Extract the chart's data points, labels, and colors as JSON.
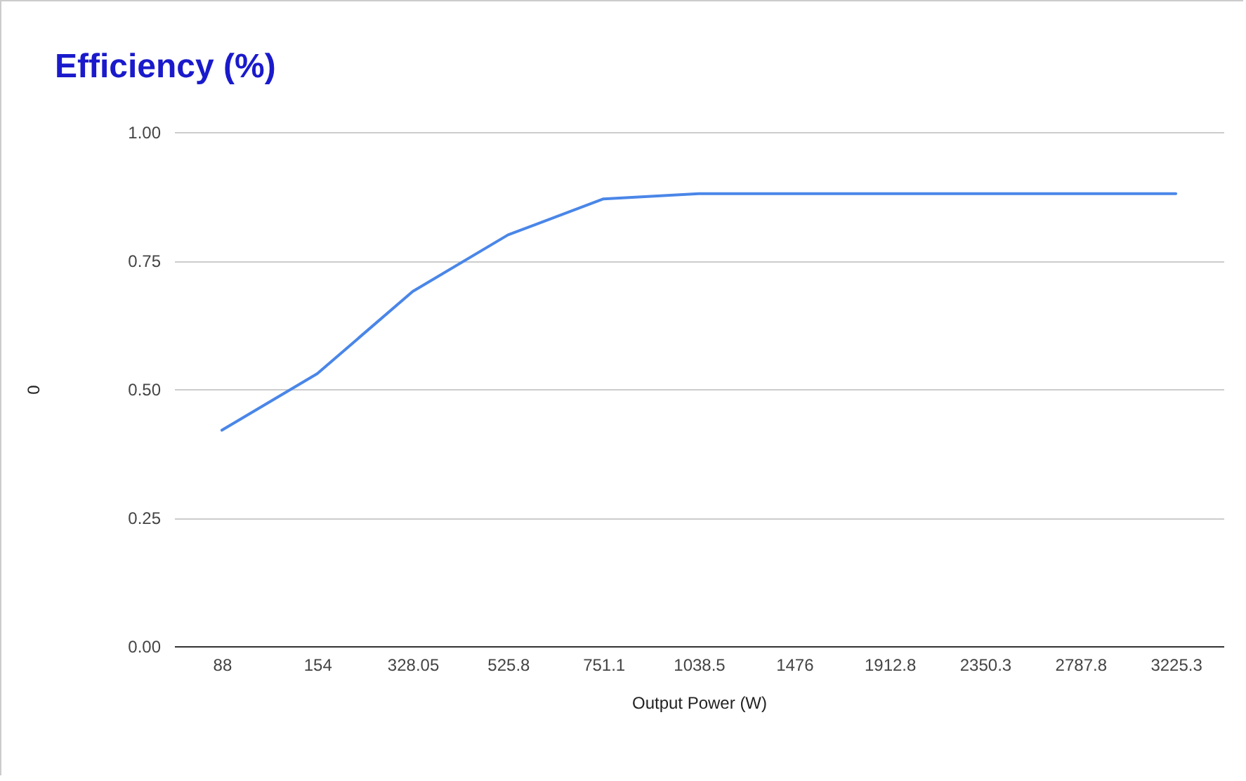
{
  "chart_data": {
    "type": "line",
    "title": "Efficiency (%)",
    "xlabel": "Output Power (W)",
    "ylabel": "0",
    "categories": [
      "88",
      "154",
      "328.05",
      "525.8",
      "751.1",
      "1038.5",
      "1476",
      "1912.8",
      "2350.3",
      "2787.8",
      "3225.3"
    ],
    "series": [
      {
        "color": "#4a86e8",
        "values": [
          0.42,
          0.53,
          0.69,
          0.8,
          0.87,
          0.88,
          0.88,
          0.88,
          0.88,
          0.88,
          0.88
        ]
      }
    ],
    "ylim": [
      0,
      1
    ],
    "yticks": [
      {
        "value": 0,
        "label": "0.00"
      },
      {
        "value": 0.25,
        "label": "0.25"
      },
      {
        "value": 0.5,
        "label": "0.50"
      },
      {
        "value": 0.75,
        "label": "0.75"
      },
      {
        "value": 1,
        "label": "1.00"
      }
    ],
    "grid": "y",
    "marker": "none"
  }
}
